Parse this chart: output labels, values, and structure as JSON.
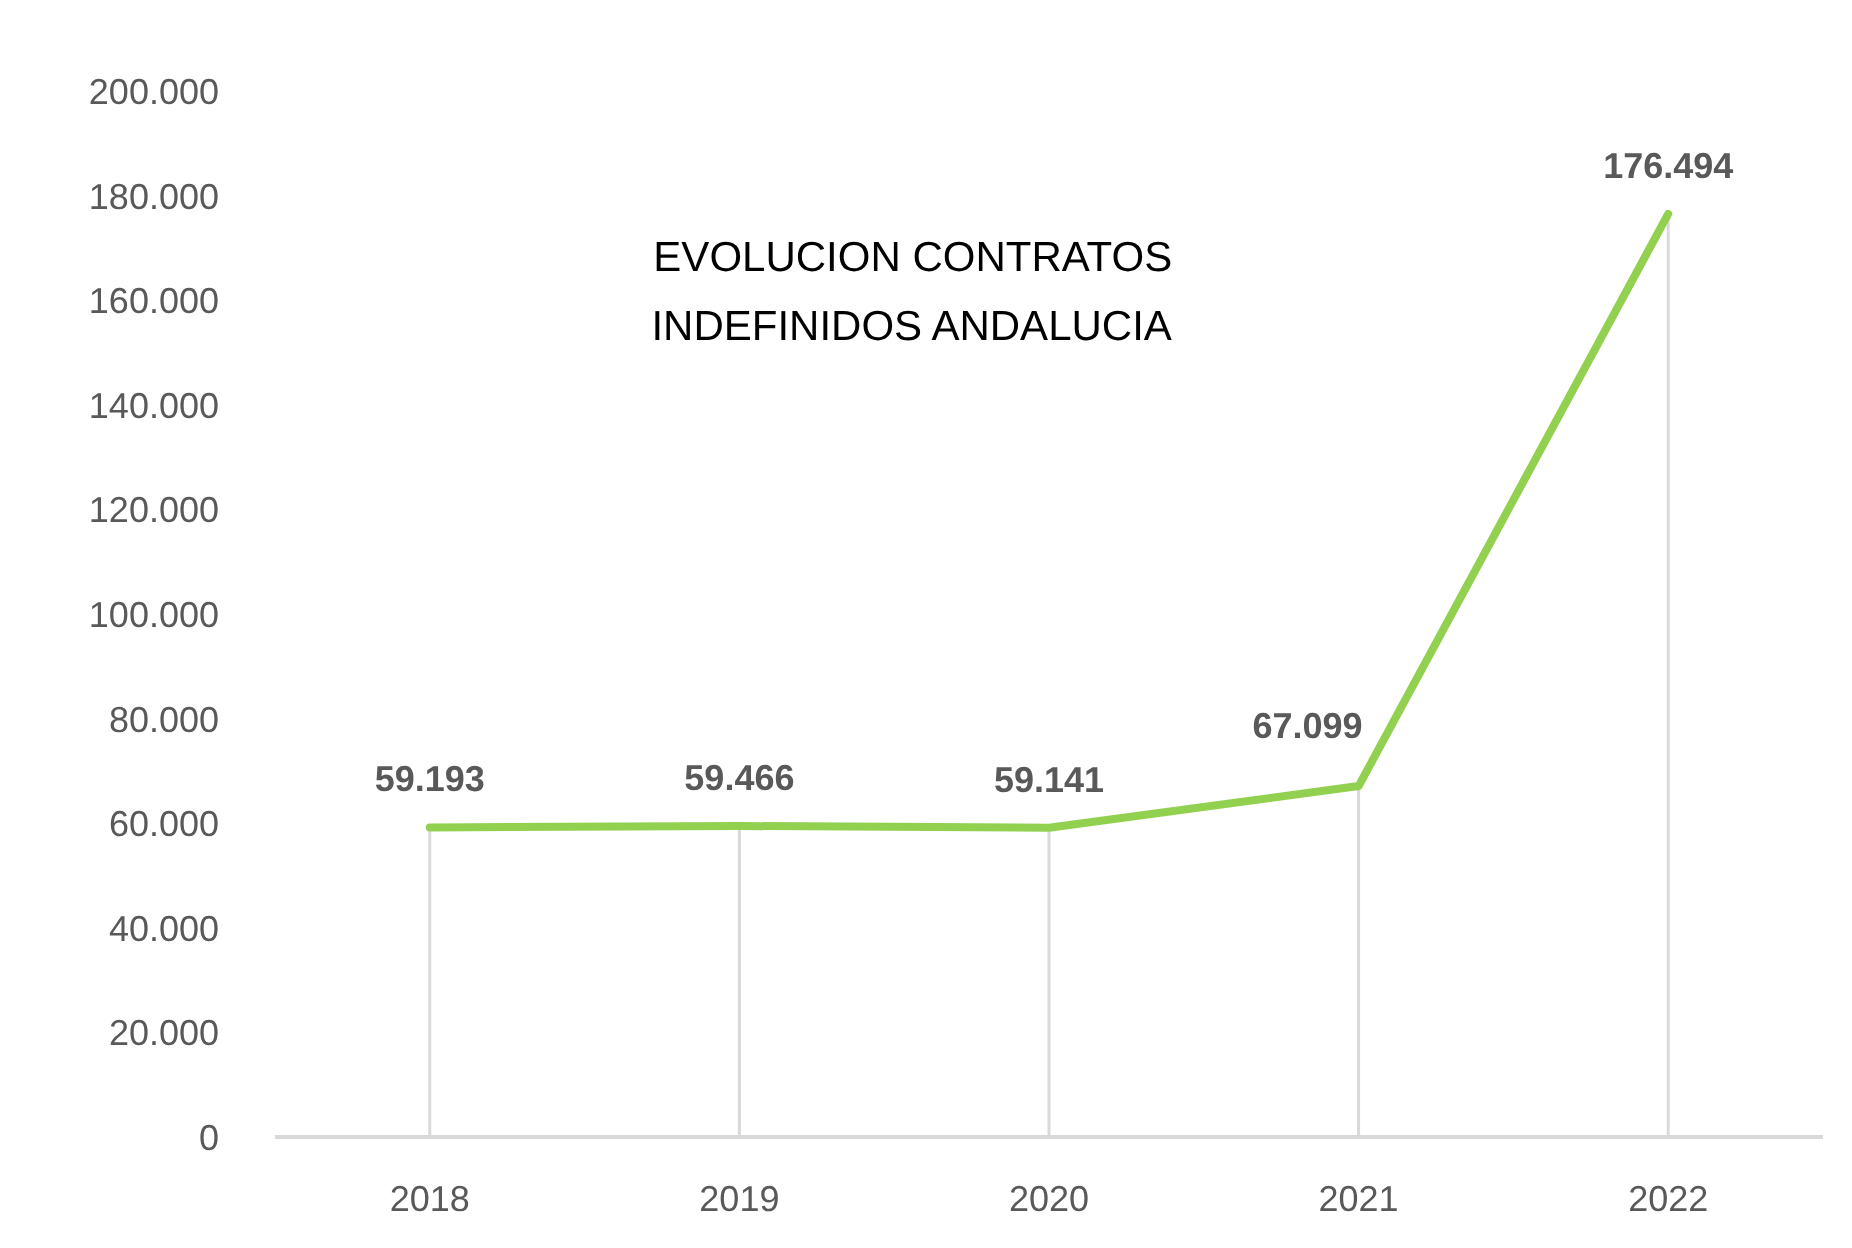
{
  "chart_data": {
    "type": "line",
    "title": "EVOLUCION CONTRATOS INDEFINIDOS ANDALUCIA",
    "categories": [
      "2018",
      "2019",
      "2020",
      "2021",
      "2022"
    ],
    "series": [
      {
        "color": "#92d050",
        "values": [
          59193,
          59466,
          59141,
          67099,
          176494
        ],
        "value_labels": [
          "59.193",
          "59.466",
          "59.141",
          "67.099",
          "176.494"
        ]
      }
    ],
    "ylim": [
      0,
      200000
    ],
    "yticks": [
      0,
      {
        "value": 20000,
        "label": "20.000"
      },
      {
        "value": 40000,
        "label": "40.000"
      },
      {
        "value": 60000,
        "label": "60.000"
      },
      {
        "value": 80000,
        "label": "80.000"
      },
      {
        "value": 100000,
        "label": "100.000"
      },
      {
        "value": 120000,
        "label": "120.000"
      },
      {
        "value": 140000,
        "label": "140.000"
      },
      {
        "value": 160000,
        "label": "160.000"
      },
      {
        "value": 180000,
        "label": "180.000"
      },
      {
        "value": 200000,
        "label": "200.000"
      }
    ]
  }
}
